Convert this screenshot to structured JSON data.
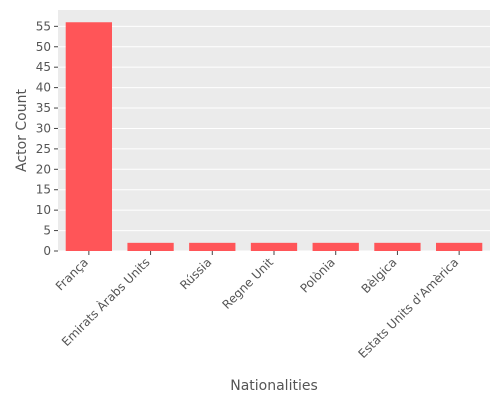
{
  "chart_data": {
    "type": "bar",
    "title": "",
    "xlabel": "Nationalities",
    "ylabel": "Actor Count",
    "categories": [
      "França",
      "Emirats Àrabs Units",
      "Rússia",
      "Regne Unit",
      "Polònia",
      "Bèlgica",
      "Estats Units d'Amèrica"
    ],
    "values": [
      56,
      2,
      2,
      2,
      2,
      2,
      2
    ],
    "ylim": [
      0,
      59
    ],
    "yticks": [
      0,
      5,
      10,
      15,
      20,
      25,
      30,
      35,
      40,
      45,
      50,
      55
    ],
    "grid": true,
    "colors": {
      "bar": "#ff5558",
      "panel_background": "#ebebeb",
      "grid": "#ffffff",
      "text": "#555555"
    }
  }
}
